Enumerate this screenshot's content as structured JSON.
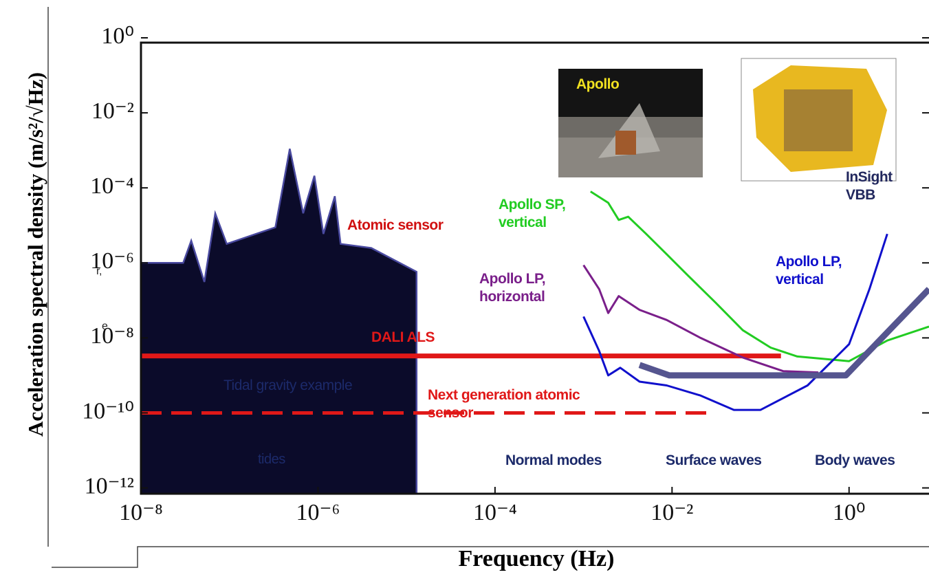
{
  "chart_data": {
    "type": "line",
    "x_label": "Frequency (Hz)",
    "y_label": "Acceleration spectral density (m/s²/√Hz)",
    "log_x": true,
    "log_y": true,
    "xlim": [
      1e-08,
      8
    ],
    "ylim": [
      7e-13,
      1
    ],
    "xticks": [
      {
        "value": 1e-08,
        "label": "10⁻⁸"
      },
      {
        "value": 1e-06,
        "label": "10⁻⁶"
      },
      {
        "value": 0.0001,
        "label": "10⁻⁴"
      },
      {
        "value": 0.01,
        "label": "10⁻²"
      },
      {
        "value": 1,
        "label": "10⁰"
      }
    ],
    "yticks": [
      {
        "value": 1,
        "label": "10⁰"
      },
      {
        "value": 0.01,
        "label": "10⁻²"
      },
      {
        "value": 0.0001,
        "label": "10⁻⁴"
      },
      {
        "value": 1e-06,
        "label": "10⁻⁶"
      },
      {
        "value": 1e-08,
        "label": "10⁻⁸"
      },
      {
        "value": 1e-10,
        "label": "10⁻¹⁰"
      },
      {
        "value": 1e-12,
        "label": "10⁻¹²"
      }
    ],
    "series": [
      {
        "name": "Tidal gravity example",
        "color": "#4a4aa0",
        "fill": "#0b0b2a",
        "style": "area",
        "x": [
          1e-08,
          3e-08,
          3.7e-08,
          5.2e-08,
          6.9e-08,
          9.3e-08,
          3.3e-07,
          4.8e-07,
          6.8e-07,
          9.1e-07,
          1.15e-06,
          1.55e-06,
          1.8e-06,
          4e-06,
          1.3e-05
        ],
        "values": [
          1e-06,
          1e-06,
          3.9e-06,
          3.1e-07,
          2.1e-05,
          3.2e-06,
          8.9e-06,
          0.0011,
          2.1e-05,
          0.00021,
          5.9e-06,
          6e-05,
          3.2e-06,
          2.5e-06,
          5.8e-07
        ]
      },
      {
        "name": "DALI ALS",
        "color": "#e01818",
        "style": "solid",
        "x": [
          1e-08,
          0.17
        ],
        "values": [
          3.3e-09,
          3.3e-09
        ]
      },
      {
        "name": "Next generation atomic sensor",
        "color": "#e01818",
        "style": "dashed",
        "x": [
          1e-08,
          0.031
        ],
        "values": [
          1e-10,
          1e-10
        ]
      },
      {
        "name": "Apollo SP, vertical",
        "color": "#22cc22",
        "style": "solid",
        "x": [
          0.0012,
          0.0019,
          0.0025,
          0.0032,
          0.0051,
          0.0087,
          0.015,
          0.031,
          0.063,
          0.13,
          0.26,
          1,
          2.7,
          8
        ],
        "values": [
          8e-05,
          4e-05,
          1.4e-05,
          1.7e-05,
          5.9e-06,
          1.7e-06,
          4.7e-07,
          8.7e-08,
          1.6e-08,
          5.5e-09,
          3.2e-09,
          2.4e-09,
          8.5e-09,
          2e-08
        ]
      },
      {
        "name": "Apollo LP, horizontal",
        "color": "#7a1f8a",
        "style": "solid",
        "x": [
          0.001,
          0.0015,
          0.0019,
          0.0025,
          0.0043,
          0.0087,
          0.021,
          0.063,
          0.18,
          0.45
        ],
        "values": [
          8.7e-07,
          2e-07,
          4.6e-08,
          1.3e-07,
          5.6e-08,
          3e-08,
          1e-08,
          3e-09,
          1.3e-09,
          1.2e-09
        ]
      },
      {
        "name": "Apollo LP, vertical",
        "color": "#1010cc",
        "style": "solid",
        "x": [
          0.001,
          0.0015,
          0.0019,
          0.0026,
          0.0043,
          0.0087,
          0.021,
          0.05,
          0.1,
          0.34,
          1,
          1.7,
          2.7
        ],
        "values": [
          3.7e-08,
          4.5e-09,
          1e-09,
          1.6e-09,
          6.8e-10,
          5.4e-10,
          2.9e-10,
          1.2e-10,
          1.2e-10,
          5.4e-10,
          6.8e-09,
          2e-07,
          5.9e-06
        ]
      },
      {
        "name": "InSight VBB",
        "color": "#55558f",
        "style": "thick",
        "x": [
          0.0043,
          0.0093,
          0.92,
          8
        ],
        "values": [
          1.9e-09,
          1e-09,
          1e-09,
          2e-07
        ]
      }
    ],
    "annotations": [
      "Atomic sensor",
      "tides",
      "Normal modes",
      "Surface waves",
      "Body waves",
      "Apollo",
      "r,",
      "e"
    ]
  }
}
